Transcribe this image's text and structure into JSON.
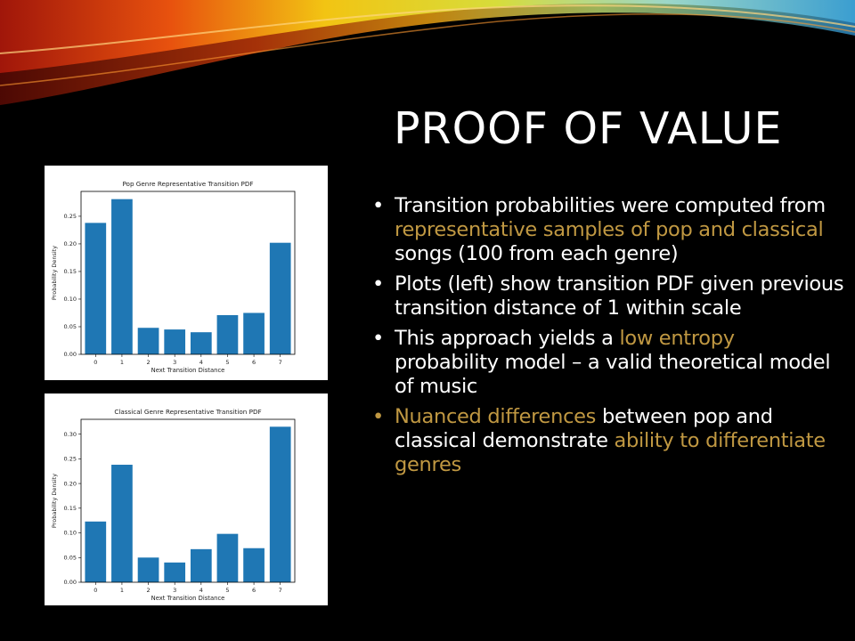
{
  "slide": {
    "title": "PROOF OF VALUE",
    "accent_color": "#c09842",
    "background": "#000000"
  },
  "bullets": [
    {
      "segments": [
        {
          "text": "Transition probabilities were computed from ",
          "accent": false
        },
        {
          "text": "representative samples of pop and classical",
          "accent": true
        },
        {
          "text": " songs (100 from each genre)",
          "accent": false
        }
      ]
    },
    {
      "segments": [
        {
          "text": "Plots (left) show transition PDF given previous transition distance of 1 within scale",
          "accent": false
        }
      ]
    },
    {
      "segments": [
        {
          "text": "This approach yields a ",
          "accent": false
        },
        {
          "text": "low entropy",
          "accent": true
        },
        {
          "text": " probability model – a valid theoretical model of music",
          "accent": false
        }
      ]
    },
    {
      "segments": [
        {
          "text": "Nuanced differences",
          "accent": true
        },
        {
          "text": " between pop and classical demonstrate ",
          "accent": false
        },
        {
          "text": "ability to differentiate genres",
          "accent": true
        }
      ],
      "bullet_accent": true
    }
  ],
  "chart_data": [
    {
      "type": "bar",
      "title": "Pop Genre Representative Transition PDF",
      "xlabel": "Next Transition Distance",
      "ylabel": "Probability Density",
      "categories": [
        "0",
        "1",
        "2",
        "3",
        "4",
        "5",
        "6",
        "7"
      ],
      "values": [
        0.238,
        0.281,
        0.048,
        0.045,
        0.04,
        0.071,
        0.075,
        0.202
      ],
      "ylim": [
        0,
        0.295
      ],
      "yticks": [
        "0.00",
        "0.05",
        "0.10",
        "0.15",
        "0.20",
        "0.25"
      ],
      "bar_color": "#1f77b4",
      "grid": false
    },
    {
      "type": "bar",
      "title": "Classical Genre Representative Transition PDF",
      "xlabel": "Next Transition Distance",
      "ylabel": "Probability Density",
      "categories": [
        "0",
        "1",
        "2",
        "3",
        "4",
        "5",
        "6",
        "7"
      ],
      "values": [
        0.123,
        0.238,
        0.05,
        0.04,
        0.067,
        0.098,
        0.069,
        0.315
      ],
      "ylim": [
        0,
        0.33
      ],
      "yticks": [
        "0.00",
        "0.05",
        "0.10",
        "0.15",
        "0.20",
        "0.25",
        "0.30"
      ],
      "bar_color": "#1f77b4",
      "grid": false
    }
  ]
}
